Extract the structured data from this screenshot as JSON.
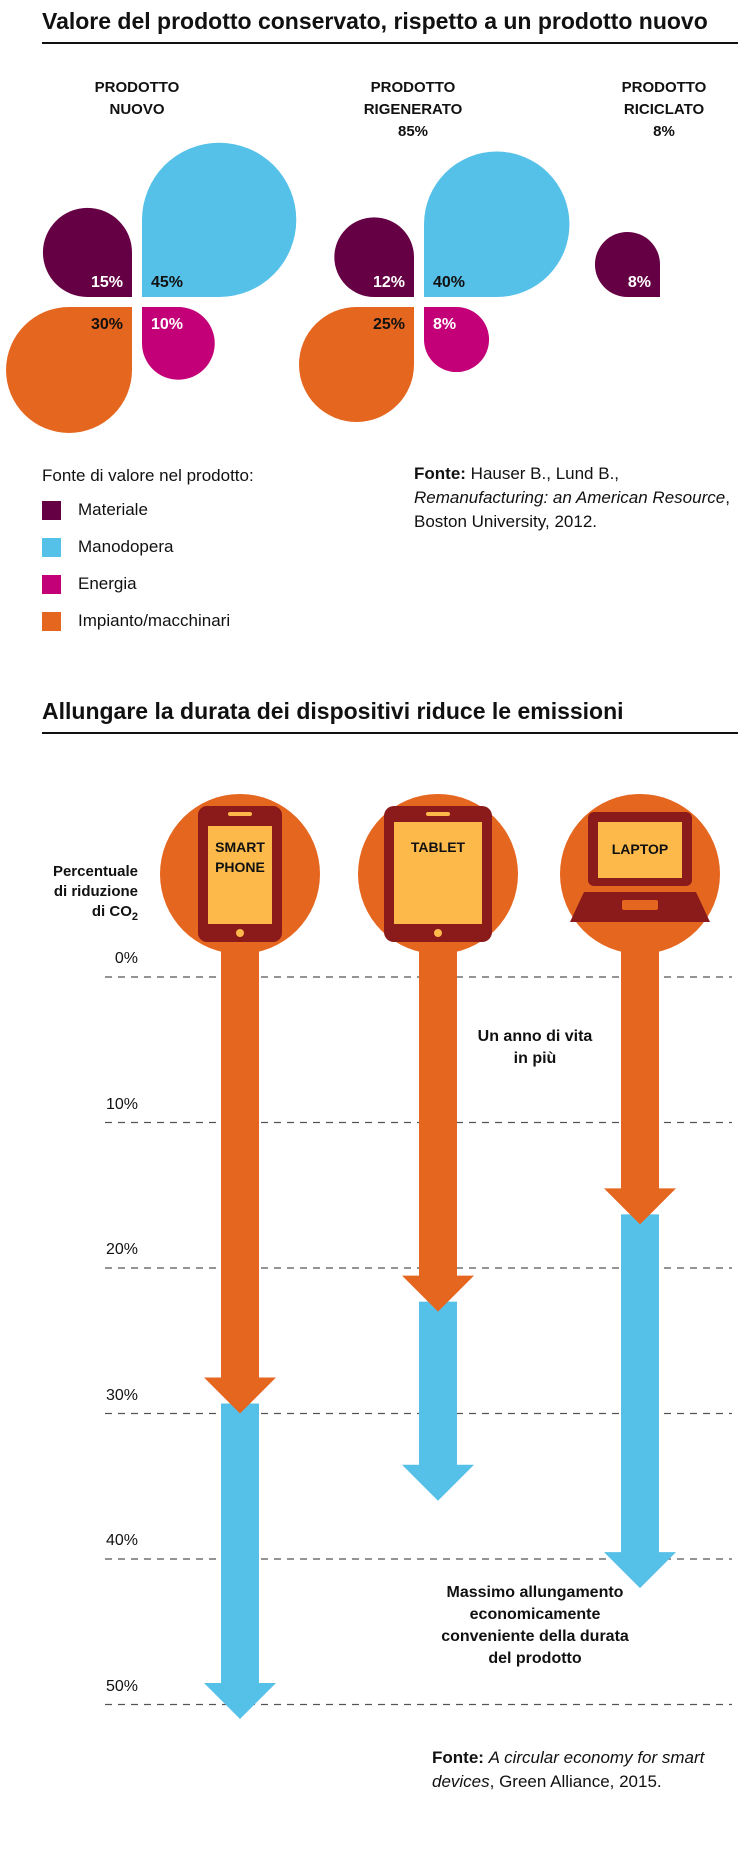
{
  "chart_data": [
    {
      "type": "other",
      "title": "Valore del prodotto conservato, rispetto a un prodotto nuovo",
      "products": [
        {
          "label": "PRODOTTO\nNUOVO",
          "total": "",
          "segments": {
            "materiale": 15,
            "manodopera": 45,
            "energia": 10,
            "impianto": 30
          }
        },
        {
          "label": "PRODOTTO\nRIGENERATO",
          "total": "85%",
          "segments": {
            "materiale": 12,
            "manodopera": 40,
            "energia": 8,
            "impianto": 25
          }
        },
        {
          "label": "PRODOTTO\nRICICLATO",
          "total": "8%",
          "segments": {
            "materiale": 8
          }
        }
      ],
      "legend_title": "Fonte di valore nel prodotto:",
      "legend": [
        {
          "key": "materiale",
          "label": "Materiale",
          "color": "#660044"
        },
        {
          "key": "manodopera",
          "label": "Manodopera",
          "color": "#56c1e8"
        },
        {
          "key": "energia",
          "label": "Energia",
          "color": "#c40078"
        },
        {
          "key": "impianto",
          "label": "Impianto/macchinari",
          "color": "#e5661f"
        }
      ],
      "source": {
        "label": "Fonte:",
        "text1": " Hauser B., Lund B.,",
        "title_italic": "Remanufacturing: an American Resource",
        "text2": ",",
        "text3": "Boston University, 2012."
      }
    },
    {
      "type": "bar",
      "title": "Allungare la durata dei dispositivi riduce le emissioni",
      "ylabel_lines": [
        "Percentuale",
        "di riduzione",
        "di CO"
      ],
      "ylabel_sub": "2",
      "ylim": [
        0,
        50
      ],
      "ticks": [
        "0%",
        "10%",
        "20%",
        "30%",
        "40%",
        "50%"
      ],
      "devices": [
        {
          "name": "smartphone",
          "label": "SMART\nPHONE",
          "one_year": 30,
          "max": 51
        },
        {
          "name": "tablet",
          "label": "TABLET",
          "one_year": 23,
          "max": 36
        },
        {
          "name": "laptop",
          "label": "LAPTOP",
          "one_year": 17,
          "max": 42
        }
      ],
      "series": [
        {
          "name": "Un anno di vita in più",
          "color": "#e5661f"
        },
        {
          "name": "Massimo allungamento economicamente conveniente della durata del prodotto",
          "color": "#56c1e8"
        }
      ],
      "annotation_one_year": "Un anno di vita\nin più",
      "annotation_max": "Massimo allungamento\neconomicamente\nconveniente della durata\ndel prodotto",
      "source": {
        "label": "Fonte:",
        "title_italic": "A circular economy for smart devices",
        "text": ", Green Alliance, 2015."
      }
    }
  ],
  "colors": {
    "device_body": "#8b1a1a",
    "device_screen": "#fdb94a",
    "grid": "#555555"
  }
}
